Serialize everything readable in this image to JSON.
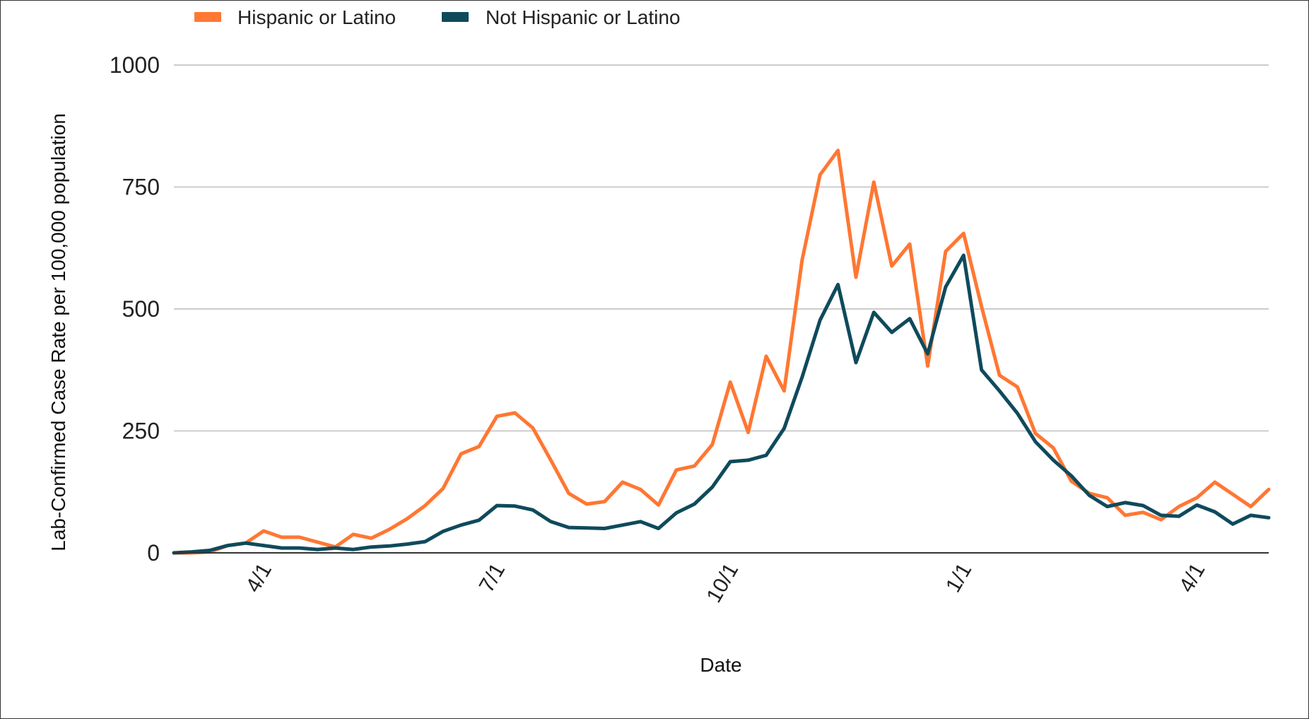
{
  "chart_data": {
    "type": "line",
    "xlabel": "Date",
    "ylabel": "Lab-Confirmed Case Rate per 100,000 population",
    "ylim": [
      0,
      1000
    ],
    "y_ticks": [
      "0",
      "250",
      "500",
      "750",
      "1000"
    ],
    "x_tick_labels": [
      "4/1",
      "7/1",
      "10/1",
      "1/1",
      "4/1"
    ],
    "x_tick_index": [
      5,
      18,
      31,
      44,
      57
    ],
    "grid": true,
    "legend_position": "top-left",
    "series": [
      {
        "name": "Hispanic or Latino",
        "color": "#ff7733",
        "values": [
          0,
          0,
          2,
          15,
          20,
          45,
          32,
          32,
          22,
          12,
          38,
          30,
          48,
          70,
          97,
          132,
          203,
          218,
          280,
          287,
          256,
          190,
          122,
          100,
          105,
          145,
          130,
          98,
          170,
          178,
          222,
          350,
          247,
          403,
          332,
          600,
          775,
          825,
          565,
          760,
          588,
          633,
          383,
          618,
          655,
          505,
          364,
          340,
          245,
          215,
          147,
          122,
          113,
          77,
          83,
          68,
          95,
          113,
          145,
          120,
          95,
          130
        ]
      },
      {
        "name": "Not Hispanic or Latino",
        "color": "#0f4a5c",
        "values": [
          0,
          2,
          5,
          15,
          20,
          15,
          10,
          10,
          7,
          10,
          7,
          12,
          14,
          18,
          23,
          44,
          57,
          67,
          97,
          96,
          88,
          64,
          52,
          51,
          50,
          57,
          64,
          50,
          82,
          100,
          135,
          187,
          190,
          200,
          255,
          360,
          477,
          550,
          390,
          493,
          452,
          480,
          408,
          545,
          610,
          375,
          332,
          286,
          228,
          190,
          158,
          118,
          95,
          103,
          97,
          77,
          75,
          98,
          84,
          59,
          77,
          72
        ]
      }
    ]
  }
}
